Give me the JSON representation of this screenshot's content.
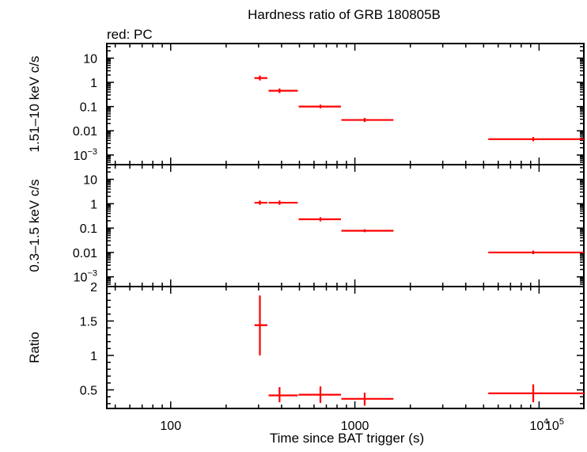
{
  "title": "Hardness ratio of GRB 180805B",
  "legend_note": "red: PC",
  "colors": {
    "series": "#ff0000",
    "axes": "#000000"
  },
  "chart_data": [
    {
      "type": "scatter",
      "panel": "top",
      "ylabel": "1.51–10 keV c/s",
      "xscale": "log",
      "yscale": "log",
      "xlim": [
        45,
        17500
      ],
      "ylim": [
        0.0004,
        40
      ],
      "yticks": [
        {
          "v": 10,
          "label": "10"
        },
        {
          "v": 1,
          "label": "1"
        },
        {
          "v": 0.1,
          "label": "0.1"
        },
        {
          "v": 0.01,
          "label": "0.01"
        },
        {
          "v": 0.001,
          "label": "10",
          "sup": "−3"
        }
      ],
      "series": [
        {
          "color": "#ff0000",
          "points": [
            {
              "x": 305,
              "xlo": 285,
              "xhi": 335,
              "y": 1.5,
              "ylo": 1.2,
              "yhi": 1.9
            },
            {
              "x": 390,
              "xlo": 340,
              "xhi": 490,
              "y": 0.45,
              "ylo": 0.36,
              "yhi": 0.56
            },
            {
              "x": 650,
              "xlo": 495,
              "xhi": 840,
              "y": 0.1,
              "ylo": 0.085,
              "yhi": 0.12
            },
            {
              "x": 1130,
              "xlo": 845,
              "xhi": 1620,
              "y": 0.028,
              "ylo": 0.023,
              "yhi": 0.034
            },
            {
              "x": 9300,
              "xlo": 5300,
              "xhi": 19000,
              "y": 0.0045,
              "ylo": 0.0037,
              "yhi": 0.0055
            }
          ]
        }
      ]
    },
    {
      "type": "scatter",
      "panel": "middle",
      "ylabel": "0.3–1.5 keV c/s",
      "xscale": "log",
      "yscale": "log",
      "xlim": [
        45,
        17500
      ],
      "ylim": [
        0.0004,
        40
      ],
      "yticks": [
        {
          "v": 10,
          "label": "10"
        },
        {
          "v": 1,
          "label": "1"
        },
        {
          "v": 0.1,
          "label": "0.1"
        },
        {
          "v": 0.01,
          "label": "0.01"
        },
        {
          "v": 0.001,
          "label": "10",
          "sup": "−3"
        }
      ],
      "series": [
        {
          "color": "#ff0000",
          "points": [
            {
              "x": 305,
              "xlo": 285,
              "xhi": 335,
              "y": 1.1,
              "ylo": 0.9,
              "yhi": 1.35
            },
            {
              "x": 390,
              "xlo": 340,
              "xhi": 490,
              "y": 1.1,
              "ylo": 0.9,
              "yhi": 1.35
            },
            {
              "x": 650,
              "xlo": 495,
              "xhi": 840,
              "y": 0.23,
              "ylo": 0.19,
              "yhi": 0.28
            },
            {
              "x": 1130,
              "xlo": 845,
              "xhi": 1620,
              "y": 0.078,
              "ylo": 0.068,
              "yhi": 0.09
            },
            {
              "x": 9300,
              "xlo": 5300,
              "xhi": 19000,
              "y": 0.01,
              "ylo": 0.0085,
              "yhi": 0.012
            }
          ]
        }
      ]
    },
    {
      "type": "scatter",
      "panel": "bottom",
      "ylabel": "Ratio",
      "xlabel": "Time since BAT trigger (s)",
      "xscale": "log",
      "yscale": "linear",
      "xlim": [
        45,
        17500
      ],
      "ylim": [
        0.23,
        2.0
      ],
      "yticks": [
        {
          "v": 2,
          "label": "2"
        },
        {
          "v": 1.5,
          "label": "1.5"
        },
        {
          "v": 1,
          "label": "1"
        },
        {
          "v": 0.5,
          "label": "0.5"
        }
      ],
      "xticks": [
        {
          "v": 100,
          "label": "100"
        },
        {
          "v": 1000,
          "label": "1000"
        },
        {
          "v": 10000,
          "label": "10",
          "sup": "4"
        },
        {
          "v": 100000,
          "label": "10",
          "sup": "5"
        }
      ],
      "series": [
        {
          "color": "#ff0000",
          "points": [
            {
              "x": 305,
              "xlo": 285,
              "xhi": 335,
              "y": 1.44,
              "ylo": 1.0,
              "yhi": 1.87
            },
            {
              "x": 390,
              "xlo": 340,
              "xhi": 490,
              "y": 0.42,
              "ylo": 0.32,
              "yhi": 0.54
            },
            {
              "x": 650,
              "xlo": 495,
              "xhi": 840,
              "y": 0.43,
              "ylo": 0.31,
              "yhi": 0.55
            },
            {
              "x": 1130,
              "xlo": 845,
              "xhi": 1620,
              "y": 0.37,
              "ylo": 0.27,
              "yhi": 0.46
            },
            {
              "x": 9300,
              "xlo": 5300,
              "xhi": 19000,
              "y": 0.45,
              "ylo": 0.32,
              "yhi": 0.58
            }
          ]
        }
      ]
    }
  ]
}
